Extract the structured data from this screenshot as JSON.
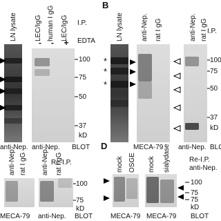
{
  "panel_a": {
    "lanes": [
      "LN lysate",
      "LEC/IgG",
      "human I gG",
      "LEC/IgG"
    ],
    "edta_signs": [
      "-",
      "-",
      "+"
    ],
    "ip": "I.P.",
    "edta": "EDTA",
    "mw": [
      "100",
      "75",
      "50",
      "37",
      "kD"
    ],
    "blot": [
      "anti-Nep.",
      "anti-Nep.",
      "BLOT"
    ]
  },
  "panel_b": {
    "label": "B",
    "lanes": [
      "LN lysate",
      "anti-Nep.",
      "rat I gG",
      "anti-Nep.",
      "rat I gG"
    ],
    "ip": "I.P.",
    "mw": [
      "100",
      "75",
      "50",
      "37",
      "kD"
    ],
    "asterisks": [
      "*",
      "*",
      "*"
    ],
    "blot": [
      "MECA-79",
      "anti-Nep.",
      "BLOT"
    ]
  },
  "panel_c": {
    "lanes": [
      "anti-Nep.",
      "rat I gG",
      "anti-Nep.",
      "rat I gG"
    ],
    "reip": "Re-I.P.",
    "mw": [
      "100",
      "75",
      "kD"
    ],
    "blot": [
      "MECA-79",
      "anti-Nep.",
      "BLOT"
    ]
  },
  "panel_d": {
    "label": "D",
    "lanes": [
      "mock",
      "OSGE",
      "mock",
      "sialydase"
    ],
    "reip": [
      "Re-I.P.",
      "anti-Nep."
    ],
    "mw": [
      "100",
      "75",
      "75",
      "kD"
    ],
    "blot": [
      "MECA-79",
      "MECA-79",
      "BLOT"
    ]
  }
}
